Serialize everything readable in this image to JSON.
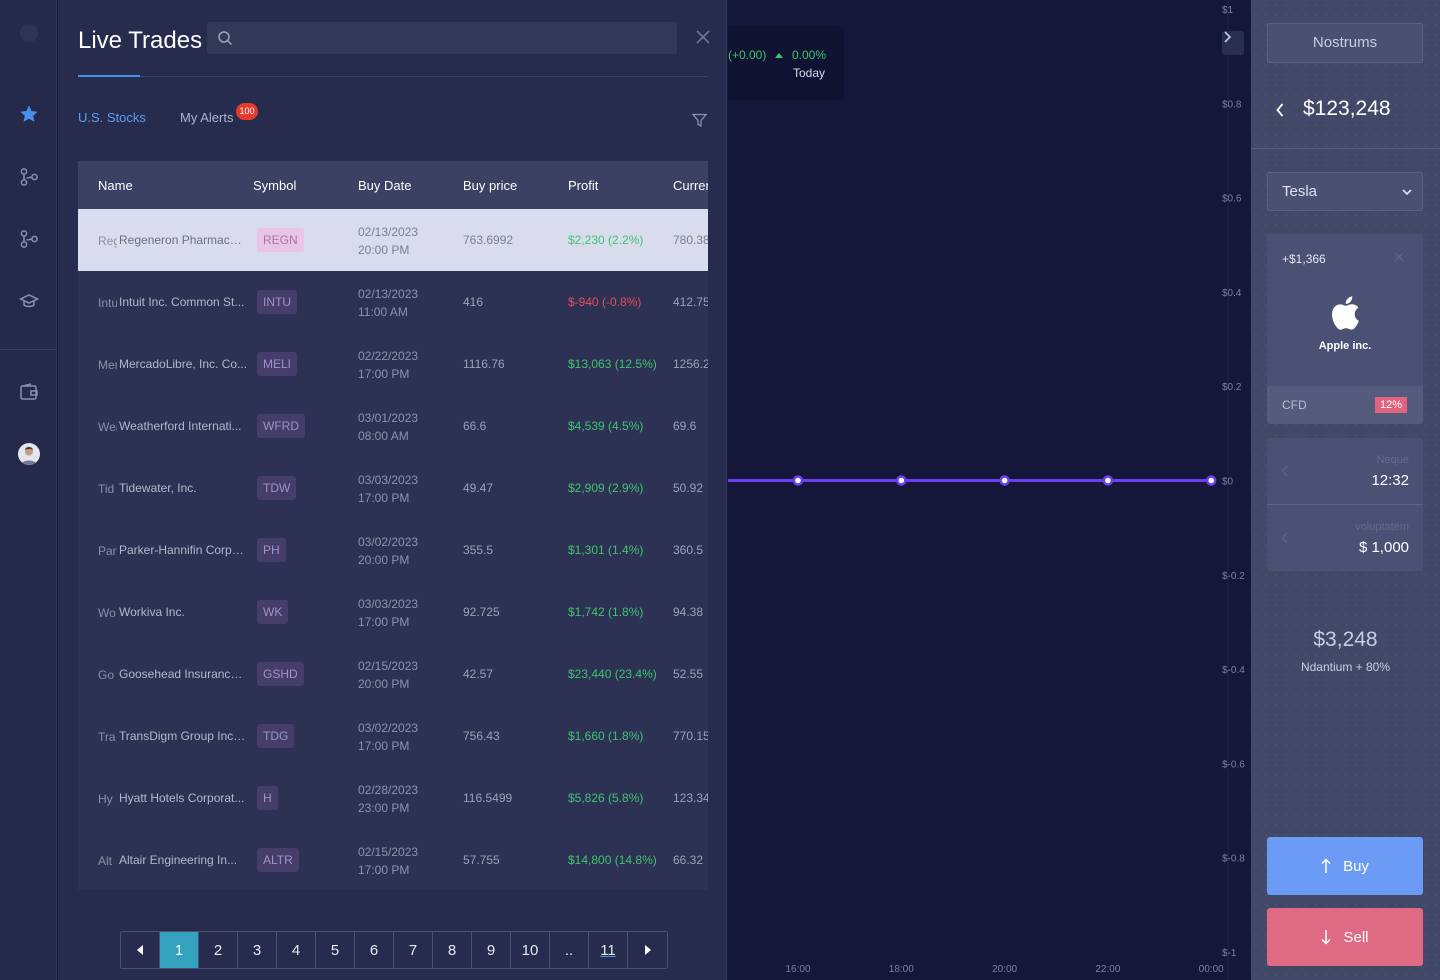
{
  "panel": {
    "title": "Live Trades",
    "search_placeholder": "",
    "tabs": [
      {
        "label": "U.S. Stocks",
        "active": true
      },
      {
        "label": "My Alerts",
        "badge": "100",
        "active": false
      }
    ]
  },
  "table": {
    "columns": [
      "Name",
      "Symbol",
      "Buy Date",
      "Buy price",
      "Profit",
      "Curren"
    ],
    "rows": [
      {
        "abbr": "Reg",
        "name": "Regeneron Pharmaceuti...",
        "symbol": "REGN",
        "date": "02/13/2023",
        "time": "20:00 PM",
        "buy_price": "763.6992",
        "profit": "$2,230 (2.2%)",
        "profit_dir": "up",
        "current": "780.38"
      },
      {
        "abbr": "Intu",
        "name": "Intuit Inc. Common St...",
        "symbol": "INTU",
        "date": "02/13/2023",
        "time": "11:00 AM",
        "buy_price": "416",
        "profit": "$-940 (-0.8%)",
        "profit_dir": "down",
        "current": "412.75"
      },
      {
        "abbr": "Mer",
        "name": "MercadoLibre, Inc. Co...",
        "symbol": "MELI",
        "date": "02/22/2023",
        "time": "17:00 PM",
        "buy_price": "1116.76",
        "profit": "$13,063 (12.5%)",
        "profit_dir": "up",
        "current": "1256.2"
      },
      {
        "abbr": "Wea",
        "name": "Weatherford Internati...",
        "symbol": "WFRD",
        "date": "03/01/2023",
        "time": "08:00 AM",
        "buy_price": "66.6",
        "profit": "$4,539 (4.5%)",
        "profit_dir": "up",
        "current": "69.6"
      },
      {
        "abbr": "Tid",
        "name": "Tidewater, Inc.",
        "symbol": "TDW",
        "date": "03/03/2023",
        "time": "17:00 PM",
        "buy_price": "49.47",
        "profit": "$2,909 (2.9%)",
        "profit_dir": "up",
        "current": "50.92"
      },
      {
        "abbr": "Par",
        "name": "Parker-Hannifin Corpo...",
        "symbol": "PH",
        "date": "03/02/2023",
        "time": "20:00 PM",
        "buy_price": "355.5",
        "profit": "$1,301 (1.4%)",
        "profit_dir": "up",
        "current": "360.5"
      },
      {
        "abbr": "Wo",
        "name": "Workiva Inc.",
        "symbol": "WK",
        "date": "03/03/2023",
        "time": "17:00 PM",
        "buy_price": "92.725",
        "profit": "$1,742 (1.8%)",
        "profit_dir": "up",
        "current": "94.38"
      },
      {
        "abbr": "Go",
        "name": "Goosehead Insurance, ...",
        "symbol": "GSHD",
        "date": "02/15/2023",
        "time": "20:00 PM",
        "buy_price": "42.57",
        "profit": "$23,440 (23.4%)",
        "profit_dir": "up",
        "current": "52.55"
      },
      {
        "abbr": "Tra",
        "name": "TransDigm Group Incor...",
        "symbol": "TDG",
        "date": "03/02/2023",
        "time": "17:00 PM",
        "buy_price": "756.43",
        "profit": "$1,660 (1.8%)",
        "profit_dir": "up",
        "current": "770.15"
      },
      {
        "abbr": "Hy",
        "name": "Hyatt Hotels Corporat...",
        "symbol": "H",
        "date": "02/28/2023",
        "time": "23:00 PM",
        "buy_price": "116.5499",
        "profit": "$5,826 (5.8%)",
        "profit_dir": "up",
        "current": "123.34"
      },
      {
        "abbr": "Alt",
        "name": "Altair Engineering In...",
        "symbol": "ALTR",
        "date": "02/15/2023",
        "time": "17:00 PM",
        "buy_price": "57.755",
        "profit": "$14,800 (14.8%)",
        "profit_dir": "up",
        "current": "66.32"
      }
    ]
  },
  "pagination": {
    "pages": [
      "1",
      "2",
      "3",
      "4",
      "5",
      "6",
      "7",
      "8",
      "9",
      "10",
      "..",
      "11"
    ],
    "current": "1"
  },
  "chart_change": {
    "absolute": "(+0.00)",
    "percent": "0.00%",
    "period": "Today"
  },
  "chart_data": {
    "type": "line",
    "x": [
      "16:00",
      "18:00",
      "20:00",
      "22:00",
      "00:00"
    ],
    "series": [
      {
        "values": [
          0,
          0,
          0,
          0,
          0
        ]
      }
    ],
    "y_ticks": [
      "$1",
      "$0.8",
      "$0.6",
      "$0.4",
      "$0.2",
      "$0",
      "$-0.2",
      "$-0.4",
      "$-0.6",
      "$-0.8",
      "$-1"
    ],
    "ylim": [
      -1,
      1
    ],
    "line_color": "#6a3ff0"
  },
  "right_panel": {
    "account": "Nostrums",
    "balance": "$123,248",
    "asset_select": "Tesla",
    "asset_card": {
      "change": "+$1,366",
      "logo_icon": "apple-logo-icon",
      "name": "Apple inc.",
      "type": "CFD",
      "tag": "12%"
    },
    "params": [
      {
        "label": "Neque",
        "value": "12:32"
      },
      {
        "label": "voluptatem",
        "value": "$ 1,000"
      }
    ],
    "payout": "$3,248",
    "payout_label": "Ndantium + 80%",
    "buy_label": "Buy",
    "sell_label": "Sell"
  },
  "colors": {
    "accent": "#4c8fe8",
    "up": "#3fc36e",
    "down": "#e74c5a",
    "buy": "#6b9bf5",
    "sell": "#de6a83",
    "page_active": "#34a1bf"
  }
}
